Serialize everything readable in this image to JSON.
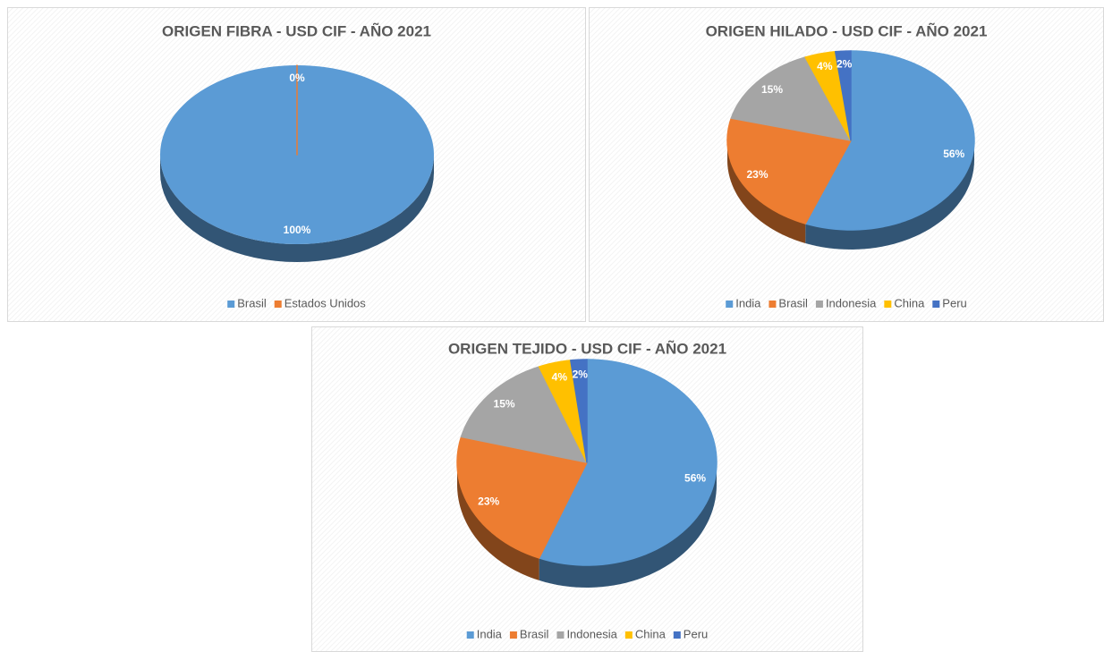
{
  "chart_data": [
    {
      "type": "pie",
      "title": "ORIGEN FIBRA - USD CIF - AÑO 2021",
      "categories": [
        "Brasil",
        "Estados Unidos"
      ],
      "values": [
        100,
        0
      ],
      "value_labels": [
        "100%",
        "0%"
      ],
      "colors": [
        "#5b9bd5",
        "#ed7d31"
      ],
      "legend": "bottom"
    },
    {
      "type": "pie",
      "title": "ORIGEN HILADO - USD CIF - AÑO 2021",
      "categories": [
        "India",
        "Brasil",
        "Indonesia",
        "China",
        "Peru"
      ],
      "values": [
        56,
        23,
        15,
        4,
        2
      ],
      "value_labels": [
        "56%",
        "23%",
        "15%",
        "4%",
        "2%"
      ],
      "colors": [
        "#5b9bd5",
        "#ed7d31",
        "#a5a5a5",
        "#ffc000",
        "#4472c4"
      ],
      "legend": "bottom"
    },
    {
      "type": "pie",
      "title": "ORIGEN TEJIDO - USD CIF - AÑO 2021",
      "categories": [
        "India",
        "Brasil",
        "Indonesia",
        "China",
        "Peru"
      ],
      "values": [
        56,
        23,
        15,
        4,
        2
      ],
      "value_labels": [
        "56%",
        "23%",
        "15%",
        "4%",
        "2%"
      ],
      "colors": [
        "#5b9bd5",
        "#ed7d31",
        "#a5a5a5",
        "#ffc000",
        "#4472c4"
      ],
      "legend": "bottom"
    }
  ]
}
